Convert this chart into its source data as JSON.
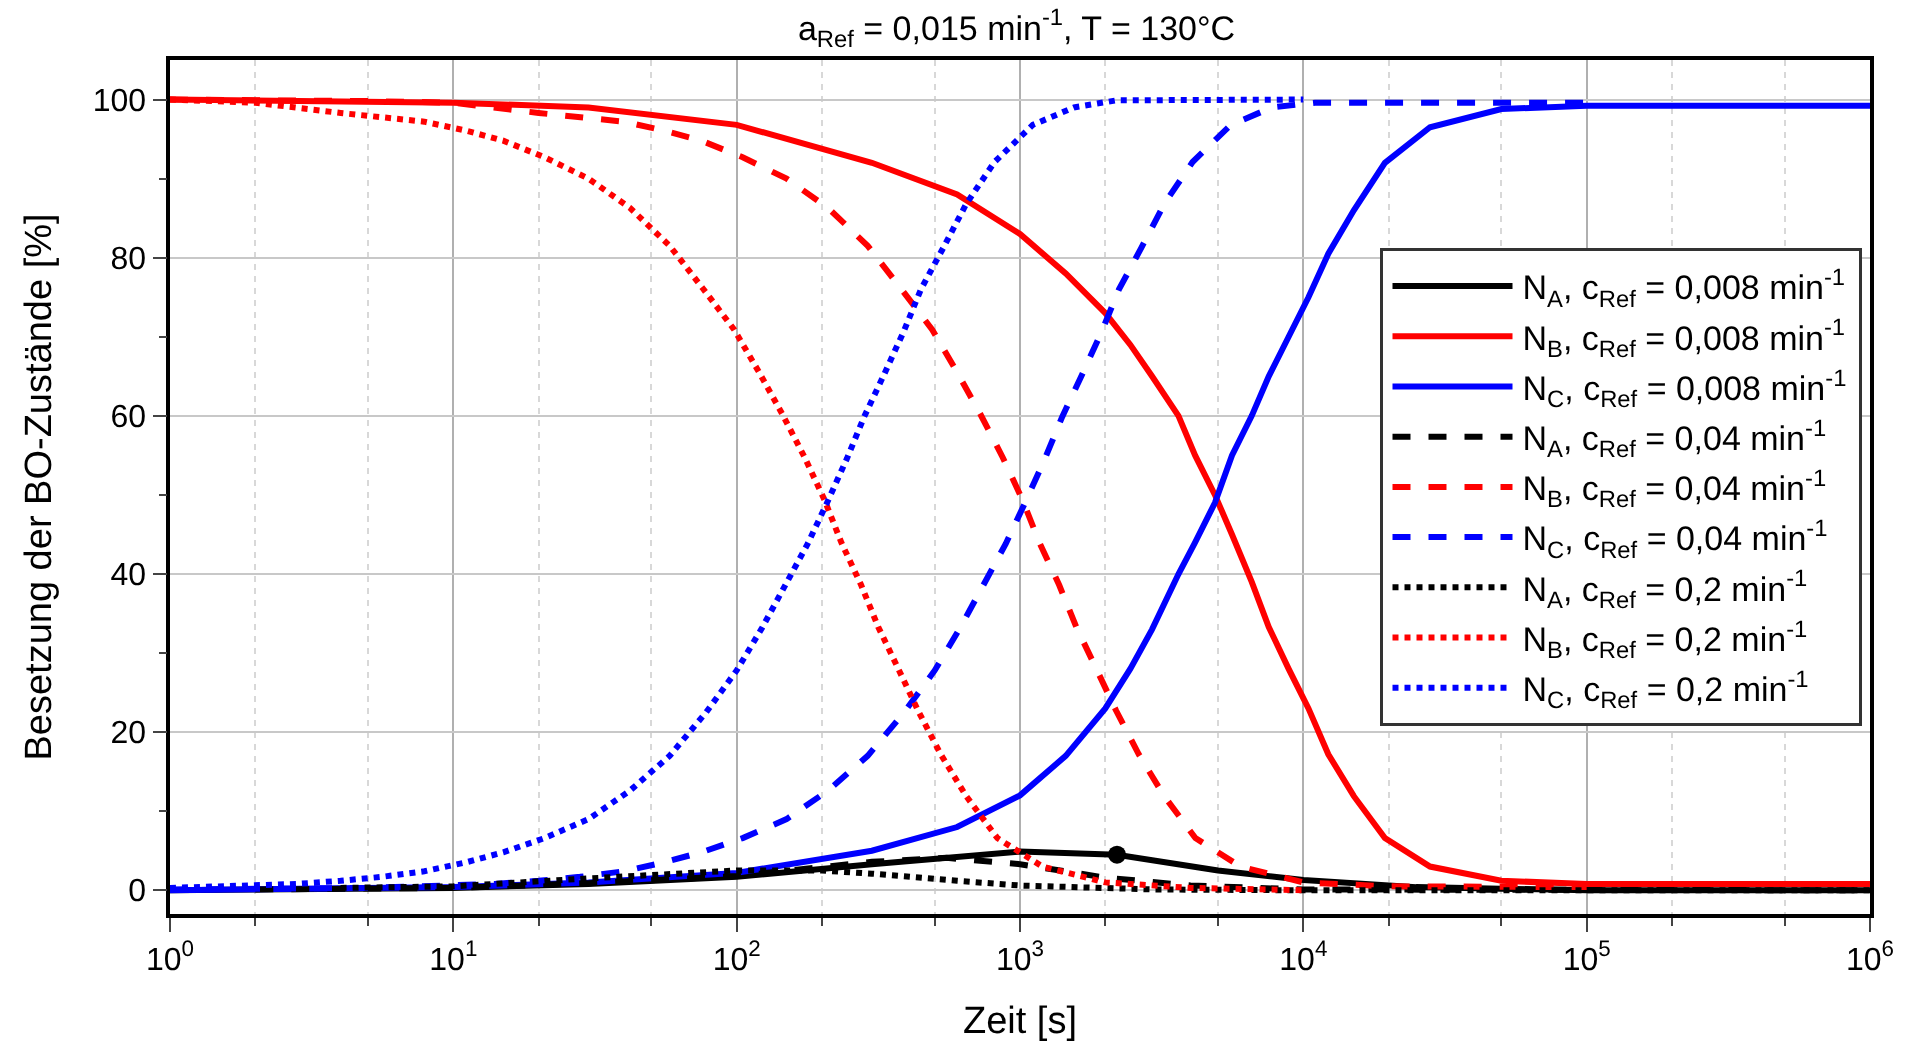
{
  "chart_data": {
    "type": "line",
    "title": "a$_{Ref}$ = 0,015 min$^{-1}$, T = 130°C",
    "xlabel": "Zeit [s]",
    "ylabel": "Besetzung der BO-Zustände [%]",
    "log": "x",
    "xlim": [
      1,
      1000000
    ],
    "xticks": [
      {
        "value": 1,
        "label": "10$^{0}$"
      },
      {
        "value": 10,
        "label": "10$^{1}$"
      },
      {
        "value": 100,
        "label": "10$^{2}$"
      },
      {
        "value": 1000,
        "label": "10$^{3}$"
      },
      {
        "value": 10000,
        "label": "10$^{4}$"
      },
      {
        "value": 100000,
        "label": "10$^{5}$"
      },
      {
        "value": 1000000,
        "label": "10$^{6}$"
      }
    ],
    "ylim": [
      -3,
      105
    ],
    "yticks": [
      0,
      20,
      40,
      60,
      80,
      100
    ],
    "grid": true,
    "legend": "right",
    "marker": "none",
    "series": [
      {
        "name": "N$_{A}$, c$_{Ref}$ = 0,008 min$^{-1}$",
        "color": "#000000",
        "line_style": "solid",
        "x": [
          1,
          10,
          30,
          100,
          300,
          1000,
          2200,
          5000,
          10000,
          25000,
          100000,
          1000000
        ],
        "values": [
          0,
          0.3,
          0.8,
          1.7,
          3.3,
          4.9,
          4.5,
          2.5,
          1.3,
          0.4,
          0,
          0
        ]
      },
      {
        "name": "N$_{B}$, c$_{Ref}$ = 0,008 min$^{-1}$",
        "color": "#ff0000",
        "line_style": "solid",
        "x": [
          1,
          10,
          30,
          100,
          300,
          600,
          1000,
          1450,
          2000,
          2450,
          2925,
          3625,
          4150,
          4875,
          5600,
          6575,
          7550,
          8875,
          10425,
          12250,
          15075,
          19400,
          28000,
          50000,
          100000,
          1000000
        ],
        "values": [
          100,
          99.6,
          99,
          96.8,
          92,
          88,
          83,
          78,
          73,
          69,
          65,
          60,
          55,
          50,
          45,
          39,
          33.3,
          28,
          23,
          17.2,
          11.9,
          6.6,
          3,
          1.2,
          0.8,
          0.8
        ]
      },
      {
        "name": "N$_{C}$, c$_{Ref}$ = 0,008 min$^{-1}$",
        "color": "#0000ff",
        "line_style": "solid",
        "x": [
          1,
          10,
          30,
          100,
          300,
          600,
          1000,
          1450,
          2000,
          2450,
          2925,
          3625,
          4150,
          4875,
          5600,
          6575,
          7550,
          8875,
          10425,
          12250,
          15075,
          19400,
          28000,
          50000,
          100000,
          1000000
        ],
        "values": [
          0,
          0.4,
          1,
          2.2,
          5,
          8,
          12,
          17,
          23,
          28,
          33,
          40,
          44,
          49,
          55,
          60,
          65,
          70,
          75,
          80.5,
          86,
          92,
          96.5,
          98.8,
          99.2,
          99.2
        ]
      },
      {
        "name": "N$_{A}$, c$_{Ref}$ = 0,04 min$^{-1}$",
        "color": "#000000",
        "line_style": "dashed",
        "x": [
          2,
          10,
          30,
          100,
          300,
          550,
          1000,
          2000,
          4000,
          10000,
          1000000
        ],
        "values": [
          0.1,
          0.3,
          0.9,
          1.8,
          3.6,
          4.1,
          3.3,
          1.6,
          0.6,
          0.1,
          0
        ]
      },
      {
        "name": "N$_{B}$, c$_{Ref}$ = 0,04 min$^{-1}$",
        "color": "#ff0000",
        "line_style": "dashed",
        "x": [
          1,
          5,
          10,
          20,
          40,
          55,
          75,
          105,
          150,
          210,
          290,
          380,
          490,
          600,
          725,
          870,
          1020,
          1170,
          1375,
          1580,
          1860,
          2185,
          2625,
          3230,
          4160,
          6000,
          10000,
          20000,
          100000
        ],
        "values": [
          100,
          99.8,
          99.6,
          98.3,
          97.2,
          96.1,
          94.8,
          92.7,
          90,
          86.3,
          81.5,
          76.1,
          70.9,
          65.5,
          60.2,
          54.7,
          49.4,
          44,
          38.6,
          33.3,
          28,
          22.7,
          17.2,
          11.9,
          6.6,
          3,
          1,
          0.5,
          0.4
        ]
      },
      {
        "name": "N$_{C}$, c$_{Ref}$ = 0,04 min$^{-1}$",
        "color": "#0000ff",
        "line_style": "dashed",
        "x": [
          1,
          5,
          14,
          20,
          28,
          40,
          55,
          75,
          105,
          150,
          210,
          290,
          390,
          500,
          615,
          740,
          890,
          1045,
          1225,
          1410,
          1655,
          1945,
          2235,
          2685,
          3230,
          4065,
          5550,
          7750,
          11000,
          100000
        ],
        "values": [
          0.1,
          0.3,
          0.8,
          1.2,
          1.7,
          2.4,
          3.5,
          4.8,
          6.6,
          9,
          12.6,
          17,
          22.5,
          27.8,
          33.2,
          38.5,
          43.8,
          49.1,
          54.6,
          59.9,
          65.2,
          70.7,
          76,
          81.3,
          86.8,
          92.1,
          96.8,
          99,
          99.6,
          99.6
        ]
      },
      {
        "name": "N$_{A}$, c$_{Ref}$ = 0,2 min$^{-1}$",
        "color": "#000000",
        "line_style": "dotted",
        "x": [
          4,
          10,
          30,
          100,
          200,
          300,
          600,
          1000,
          3000,
          10000,
          1000000
        ],
        "values": [
          0.3,
          0.5,
          1.5,
          2.5,
          2.5,
          2.1,
          1.2,
          0.6,
          0.1,
          0,
          0
        ]
      },
      {
        "name": "N$_{B}$, c$_{Ref}$ = 0,2 min$^{-1}$",
        "color": "#ff0000",
        "line_style": "dotted",
        "x": [
          1,
          2,
          4,
          7.9,
          11,
          15,
          21,
          30,
          42,
          58,
          76,
          98,
          120,
          145,
          174,
          204,
          234,
          275,
          316,
          372,
          437,
          525,
          646,
          832,
          1200,
          2000,
          4000,
          10000
        ],
        "values": [
          100,
          99.6,
          98.3,
          97.2,
          96.1,
          94.8,
          92.7,
          90,
          86.3,
          81.5,
          76.1,
          70.9,
          65.5,
          60.2,
          54.7,
          49.4,
          44,
          38.6,
          33.3,
          28,
          22.7,
          17.2,
          11.9,
          6.6,
          3,
          1,
          0.3,
          0
        ]
      },
      {
        "name": "N$_{C}$, c$_{Ref}$ = 0,2 min$^{-1}$",
        "color": "#0000ff",
        "line_style": "dotted",
        "x": [
          1,
          2.8,
          4,
          5.6,
          7.9,
          11,
          15,
          21,
          30,
          42,
          58,
          78,
          100,
          123,
          148,
          178,
          209,
          245,
          282,
          331,
          389,
          447,
          537,
          646,
          813,
          1110,
          1550,
          2190,
          10000
        ],
        "values": [
          0.3,
          0.8,
          1.2,
          1.7,
          2.4,
          3.5,
          4.8,
          6.6,
          9,
          12.6,
          17,
          22.5,
          27.8,
          33.2,
          38.5,
          43.8,
          49.1,
          54.6,
          59.9,
          65.2,
          70.7,
          76,
          81.3,
          86.8,
          92.1,
          96.8,
          99,
          99.9,
          100
        ]
      },
      {
        "type": "scatter",
        "color": "#000000",
        "marker": "circle",
        "x": [
          2200
        ],
        "values": [
          4.5
        ]
      }
    ]
  }
}
